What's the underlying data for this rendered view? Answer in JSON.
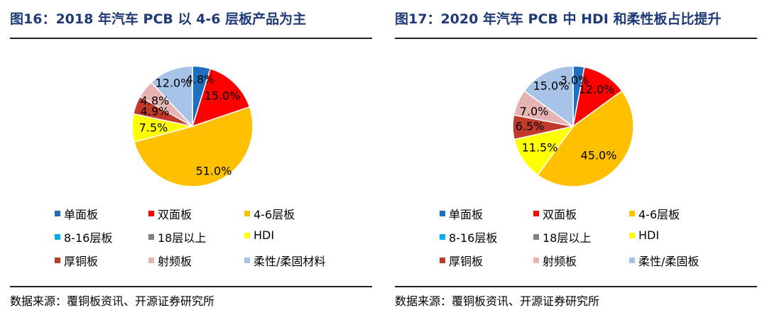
{
  "left": {
    "title": "图16：2018 年汽车 PCB 以 4-6 层板产品为主",
    "source": "数据来源：覆铜板资讯、开源证券研究所"
  },
  "right": {
    "title": "图17：2020 年汽车 PCB 中 HDI 和柔性板占比提升",
    "source": "数据来源：覆铜板资讯、开源证券研究所"
  },
  "chart_data": [
    {
      "type": "pie",
      "title": "",
      "categories": [
        "单面板",
        "双面板",
        "4-6层板",
        "8-16层板",
        "18层以上",
        "HDI",
        "厚铜板",
        "射频板",
        "柔性/柔固材料"
      ],
      "values": [
        4.8,
        15.0,
        51.0,
        0,
        0,
        7.5,
        4.9,
        4.8,
        12.0
      ],
      "labels": [
        "4.8%",
        "15.0%",
        "51.0%",
        "",
        "",
        "7.5%",
        "4.9%",
        "4.8%",
        "12.0%"
      ],
      "colors": [
        "#1f6fbf",
        "#ff0000",
        "#ffc000",
        "#00b0f0",
        "#808080",
        "#ffff00",
        "#c0392b",
        "#e6b3b3",
        "#a7c3e8"
      ],
      "legend_position": "bottom"
    },
    {
      "type": "pie",
      "title": "",
      "categories": [
        "单面板",
        "双面板",
        "4-6层板",
        "8-16层板",
        "18层以上",
        "HDI",
        "厚铜板",
        "射频板",
        "柔性/柔固板"
      ],
      "values": [
        3.0,
        12.0,
        45.0,
        0,
        0,
        11.5,
        6.5,
        7.0,
        15.0
      ],
      "labels": [
        "3.0%",
        "12.0%",
        "45.0%",
        "",
        "",
        "11.5%",
        "6.5%",
        "7.0%",
        "15.0%"
      ],
      "colors": [
        "#1f6fbf",
        "#ff0000",
        "#ffc000",
        "#00b0f0",
        "#808080",
        "#ffff00",
        "#c0392b",
        "#e6b3b3",
        "#a7c3e8"
      ],
      "legend_position": "bottom"
    }
  ]
}
